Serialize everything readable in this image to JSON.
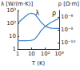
{
  "chart_data": {
    "type": "line",
    "log": true,
    "grid": false,
    "y_label": "λ [W/(m·K)]",
    "y2_label": "ρ [Ω·m]",
    "x_label": "T (K)",
    "x": [
      1,
      2,
      4,
      7,
      10,
      15,
      20,
      30,
      50,
      100,
      200,
      300,
      1000
    ],
    "xlim": [
      1,
      1000
    ],
    "xticks": [
      1,
      10,
      {
        "value": 100,
        "label": "10²"
      },
      {
        "value": 1000,
        "label": "10³"
      }
    ],
    "ylim": [
      1,
      1000
    ],
    "yticks": [
      1,
      10,
      {
        "value": 100,
        "label": "10²"
      },
      {
        "value": 1000,
        "label": "10³"
      }
    ],
    "y2lim": [
      1e-11,
      1e-05
    ],
    "y2ticks": [
      {
        "value": 1e-10,
        "label": "10⁻¹⁰"
      },
      {
        "value": 1e-08,
        "label": "10⁻⁸"
      },
      {
        "value": 1e-06,
        "label": "10⁻⁶"
      }
    ],
    "series": [
      {
        "name": "λ",
        "color": "#3a7fc4",
        "values": [
          100,
          200,
          380,
          560,
          620,
          550,
          430,
          250,
          120,
          60,
          45,
          42,
          40
        ]
      },
      {
        "name": "ρ",
        "color": "#3a7fc4",
        "axis": "y2",
        "values": [
          2e-10,
          2e-10,
          2e-10,
          2.1e-10,
          2.3e-10,
          3e-10,
          5e-10,
          1.5e-09,
          8e-09,
          3.5e-08,
          1e-07,
          1.7e-07,
          6e-07
        ]
      }
    ]
  }
}
